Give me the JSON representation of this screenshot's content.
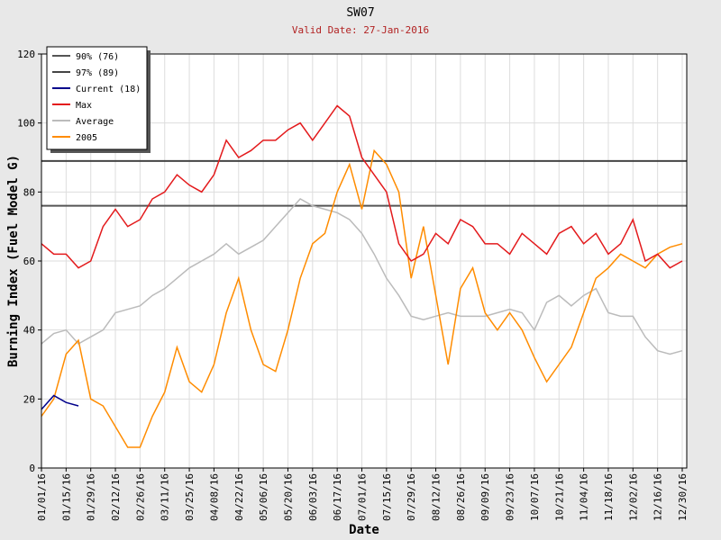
{
  "chart_data": {
    "type": "line",
    "title": "SW07",
    "subtitle": "Valid Date: 27-Jan-2016",
    "x_label": "Date",
    "y_label": "Burning Index (Fuel Model G)",
    "categories": [
      "01/01/16",
      null,
      "01/15/16",
      null,
      "01/29/16",
      null,
      "02/12/16",
      null,
      "02/26/16",
      null,
      "03/11/16",
      null,
      "03/25/16",
      null,
      "04/08/16",
      null,
      "04/22/16",
      null,
      "05/06/16",
      null,
      "05/20/16",
      null,
      "06/03/16",
      null,
      "06/17/16",
      null,
      "07/01/16",
      null,
      "07/15/16",
      null,
      "07/29/16",
      null,
      "08/12/16",
      null,
      "08/26/16",
      null,
      "09/09/16",
      null,
      "09/23/16",
      null,
      "10/07/16",
      null,
      "10/21/16",
      null,
      "11/04/16",
      null,
      "11/18/16",
      null,
      "12/02/16",
      null,
      "12/16/16",
      null,
      "12/30/16"
    ],
    "ylim": [
      0,
      120
    ],
    "yticks": [
      0,
      20,
      40,
      60,
      80,
      100,
      120
    ],
    "grid": true,
    "legend": "top-left",
    "thresholds": [
      {
        "name": "90% (76)",
        "color": "#555555",
        "value": 76
      },
      {
        "name": "97% (89)",
        "color": "#444444",
        "value": 89
      }
    ],
    "series": [
      {
        "name": "Current (18)",
        "color": "#00008b",
        "values": [
          17,
          21,
          19,
          18,
          null,
          null,
          null,
          null,
          null,
          null,
          null,
          null,
          null,
          null,
          null,
          null,
          null,
          null,
          null,
          null,
          null,
          null,
          null,
          null,
          null,
          null,
          null,
          null,
          null,
          null,
          null,
          null,
          null,
          null,
          null,
          null,
          null,
          null,
          null,
          null,
          null,
          null,
          null,
          null,
          null,
          null,
          null,
          null,
          null,
          null,
          null,
          null,
          null
        ]
      },
      {
        "name": "Max",
        "color": "#e31a1c",
        "values": [
          65,
          62,
          62,
          58,
          60,
          70,
          75,
          70,
          72,
          78,
          80,
          85,
          82,
          80,
          85,
          95,
          90,
          92,
          95,
          95,
          98,
          100,
          95,
          100,
          105,
          102,
          90,
          85,
          80,
          65,
          60,
          62,
          68,
          65,
          72,
          70,
          65,
          65,
          62,
          68,
          65,
          62,
          68,
          70,
          65,
          68,
          62,
          65,
          72,
          60,
          62,
          58,
          60
        ]
      },
      {
        "name": "Average",
        "color": "#bbbbbb",
        "values": [
          36,
          39,
          40,
          36,
          38,
          40,
          45,
          46,
          47,
          50,
          52,
          55,
          58,
          60,
          62,
          65,
          62,
          64,
          66,
          70,
          74,
          78,
          76,
          75,
          74,
          72,
          68,
          62,
          55,
          50,
          44,
          43,
          44,
          45,
          44,
          44,
          44,
          45,
          46,
          45,
          40,
          48,
          50,
          47,
          50,
          52,
          45,
          44,
          44,
          38,
          34,
          33,
          34
        ]
      },
      {
        "name": "2005",
        "color": "#ff8c00",
        "values": [
          15,
          20,
          33,
          37,
          20,
          18,
          12,
          6,
          6,
          15,
          22,
          35,
          25,
          22,
          30,
          45,
          55,
          40,
          30,
          28,
          40,
          55,
          65,
          68,
          80,
          88,
          75,
          92,
          88,
          80,
          55,
          70,
          50,
          30,
          52,
          58,
          45,
          40,
          45,
          40,
          32,
          25,
          30,
          35,
          45,
          55,
          58,
          62,
          60,
          58,
          62,
          64,
          65
        ]
      }
    ]
  }
}
